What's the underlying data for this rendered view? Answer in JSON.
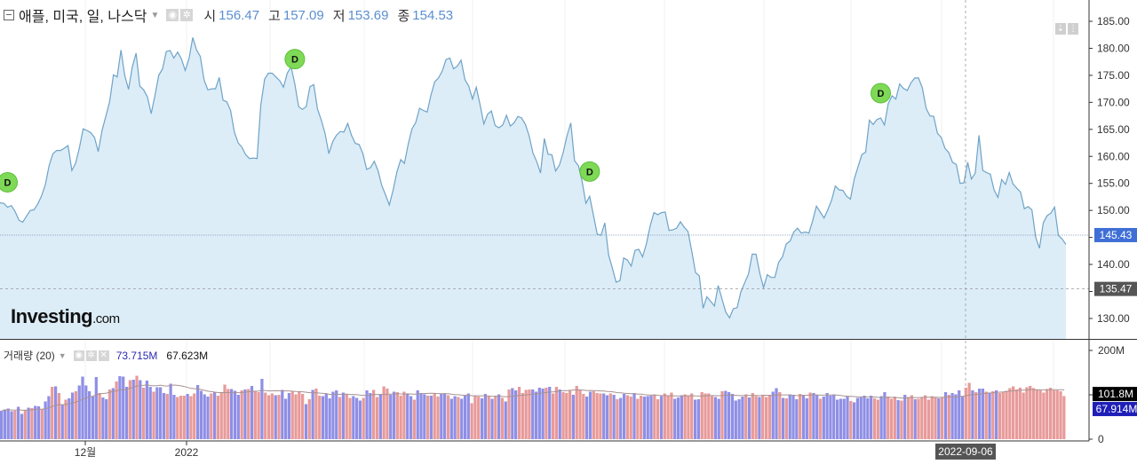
{
  "header": {
    "title": "애플, 미국, 일, 나스닥",
    "open_label": "시",
    "open": "156.47",
    "high_label": "고",
    "high": "157.09",
    "low_label": "저",
    "low": "153.69",
    "close_label": "종",
    "close": "154.53"
  },
  "volume_header": {
    "title": "거래량 (20)",
    "value1": "73.715M",
    "value2": "67.623M"
  },
  "logo": {
    "main": "Investing",
    "suffix": ".com"
  },
  "colors": {
    "line": "#6fa3c7",
    "area": "#dcedf8",
    "vol_up": "#8f8fe6",
    "vol_down": "#e89a9a",
    "marker": "#7ed957",
    "price_badge": "#3f6fd6",
    "ref_badge": "#555555"
  },
  "chart_data": [
    {
      "type": "area",
      "series_label": "price",
      "y_ticks": [
        "185.00",
        "180.00",
        "175.00",
        "170.00",
        "165.00",
        "160.00",
        "155.00",
        "150.00",
        "145.00",
        "140.00",
        "135.00",
        "130.00"
      ],
      "ylim": [
        127,
        187
      ],
      "x_labels": [
        "12월",
        "2022",
        "2022-09-06"
      ],
      "current_price_label": "145.43",
      "current_price": 145.43,
      "ref_price_label": "135.47",
      "ref_price": 135.47,
      "dividend_marker": "D",
      "dividend_markers_idx": [
        2,
        78,
        156,
        233
      ],
      "values": [
        151.4,
        151.3,
        150.6,
        150.9,
        149.8,
        148.2,
        147.8,
        148.9,
        150.0,
        150.1,
        151.2,
        152.7,
        154.8,
        158.3,
        160.5,
        161.1,
        161.1,
        161.5,
        162.0,
        157.4,
        158.7,
        161.6,
        165.1,
        164.8,
        164.4,
        163.5,
        160.9,
        164.8,
        167.4,
        170.1,
        175.1,
        174.7,
        179.7,
        175.0,
        172.4,
        176.5,
        179.1,
        173.0,
        172.3,
        171.0,
        167.9,
        171.3,
        175.0,
        176.2,
        179.4,
        179.6,
        178.2,
        179.3,
        178.0,
        175.9,
        178.1,
        182.0,
        179.7,
        178.5,
        174.1,
        172.3,
        172.5,
        172.5,
        174.6,
        170.4,
        170.1,
        168.5,
        164.5,
        162.5,
        161.7,
        160.3,
        159.6,
        159.7,
        159.6,
        169.5,
        174.3,
        175.4,
        175.4,
        174.7,
        174.0,
        172.8,
        175.4,
        176.6,
        173.4,
        169.2,
        168.7,
        169.2,
        172.9,
        173.3,
        168.8,
        166.7,
        164.2,
        160.5,
        162.7,
        163.9,
        164.6,
        164.5,
        166.1,
        163.9,
        162.4,
        162.2,
        160.5,
        157.6,
        157.9,
        159.1,
        157.4,
        154.6,
        152.9,
        151.0,
        153.8,
        157.1,
        159.4,
        158.7,
        162.3,
        165.1,
        166.3,
        168.9,
        168.5,
        168.2,
        171.3,
        173.8,
        174.5,
        175.8,
        177.9,
        178.2,
        176.2,
        176.7,
        177.8,
        174.2,
        173.0,
        170.6,
        172.8,
        169.6,
        166.0,
        167.8,
        168.4,
        165.7,
        165.3,
        165.8,
        167.6,
        165.6,
        166.2,
        167.4,
        167.1,
        165.9,
        163.8,
        160.6,
        159.0,
        156.9,
        163.3,
        160.4,
        160.3,
        157.3,
        158.4,
        160.7,
        163.8,
        166.2,
        159.2,
        158.3,
        155.4,
        151.3,
        152.6,
        149.1,
        145.6,
        145.4,
        147.7,
        141.8,
        139.3,
        136.7,
        137.0,
        141.2,
        140.8,
        139.7,
        142.6,
        142.8,
        141.4,
        143.8,
        147.1,
        149.6,
        149.2,
        149.6,
        149.7,
        146.3,
        146.4,
        146.7,
        147.9,
        146.9,
        146.1,
        142.5,
        138.5,
        137.9,
        131.9,
        134.0,
        133.2,
        132.3,
        136.1,
        133.6,
        131.2,
        130.1,
        131.8,
        132.0,
        134.9,
        136.6,
        138.2,
        141.9,
        141.9,
        138.4,
        135.7,
        138.1,
        137.6,
        137.6,
        140.4,
        141.4,
        143.8,
        144.3,
        146.0,
        146.7,
        145.8,
        146.0,
        145.8,
        148.1,
        150.8,
        149.7,
        148.6,
        150.1,
        151.9,
        154.5,
        153.8,
        153.7,
        152.6,
        152.1,
        155.8,
        158.1,
        160.3,
        160.8,
        166.7,
        165.9,
        166.8,
        167.1,
        165.8,
        169.8,
        171.2,
        170.6,
        173.4,
        172.6,
        172.2,
        173.6,
        174.5,
        174.5,
        172.7,
        168.9,
        167.5,
        167.4,
        164.3,
        163.5,
        161.5,
        160.7,
        158.9,
        158.5,
        155.0,
        155.1,
        158.9,
        155.8,
        156.9,
        163.9,
        157.4,
        157.0,
        156.7,
        153.8,
        152.4,
        155.7,
        154.8,
        157.0,
        154.9,
        154.1,
        153.4,
        150.3,
        150.7,
        150.1,
        145.0,
        143.0,
        147.7,
        149.0,
        149.5,
        150.6,
        145.4,
        144.7,
        143.7
      ]
    },
    {
      "type": "bar",
      "series_label": "volume",
      "y_ticks": [
        "200M",
        "100M",
        "0"
      ],
      "ylim": [
        0,
        200
      ],
      "current_volume_label": "101.8M",
      "current_volume": 101.8,
      "avg_volume_label": "67.914M",
      "avg_volume": 67.914,
      "up_flags": "1111011010110110101011011111101101011101010110111011000100111101000011101010010001011100001010011111010011101100100110001101110100110110111000110101010110000111101001000100011000110101100100111001000111000110000110111111010010001101011101101101111111101111110011000101001000000101011110010110101",
      "values": [
        64,
        67,
        69,
        63,
        64,
        73,
        57,
        65,
        71,
        70,
        75,
        74,
        68,
        85,
        97,
        118,
        119,
        104,
        77,
        89,
        92,
        105,
        108,
        121,
        141,
        121,
        108,
        96,
        140,
        104,
        94,
        90,
        112,
        115,
        130,
        142,
        141,
        118,
        133,
        134,
        143,
        133,
        116,
        132,
        118,
        107,
        117,
        117,
        104,
        102,
        125,
        100,
        95,
        98,
        98,
        102,
        97,
        103,
        122,
        109,
        101,
        96,
        103,
        106,
        98,
        106,
        123,
        113,
        113,
        109,
        100,
        110,
        112,
        113,
        120,
        109,
        106,
        136,
        105,
        99,
        103,
        99,
        100,
        111,
        91,
        104,
        108,
        101,
        108,
        102,
        79,
        90,
        111,
        114,
        98,
        97,
        102,
        92,
        107,
        110,
        95,
        105,
        102,
        93,
        97,
        93,
        87,
        93,
        110,
        104,
        111,
        95,
        102,
        119,
        114,
        100,
        107,
        106,
        98,
        107,
        101,
        97,
        89,
        110,
        104,
        101,
        98,
        98,
        104,
        96,
        102,
        102,
        99,
        91,
        97,
        95,
        91,
        98,
        103,
        81,
        99,
        96,
        92,
        102,
        97,
        91,
        98,
        101,
        93,
        85,
        112,
        115,
        110,
        118,
        104,
        111,
        112,
        112,
        107,
        116,
        114,
        116,
        118,
        103,
        118,
        112,
        106,
        104,
        109,
        100,
        120,
        111,
        102,
        96,
        107,
        108,
        104,
        103,
        103,
        99,
        103,
        100,
        90,
        93,
        102,
        99,
        96,
        104,
        91,
        98,
        96,
        97,
        98,
        101,
        90,
        97,
        103,
        99,
        105,
        91,
        94,
        99,
        101,
        98,
        103,
        89,
        90,
        106,
        103,
        103,
        97,
        95,
        91,
        108,
        109,
        106,
        102,
        87,
        90,
        96,
        101,
        94,
        104,
        97,
        95,
        100,
        95,
        100,
        107,
        115,
        106,
        93,
        92,
        101,
        100,
        90,
        102,
        100,
        92,
        105,
        104,
        99,
        91,
        96,
        104,
        98,
        101,
        89,
        91,
        91,
        96,
        86,
        83,
        93,
        94,
        98,
        92,
        98,
        92,
        89,
        97,
        106,
        96,
        91,
        96,
        88,
        87,
        100,
        95,
        99,
        90,
        91,
        94,
        99,
        89,
        97,
        95,
        92,
        94,
        106,
        100,
        104,
        101,
        110,
        97,
        116,
        127,
        110,
        106,
        114,
        114,
        107,
        105,
        108,
        110,
        104,
        107,
        109,
        115,
        119,
        112,
        116,
        105,
        117,
        120,
        115,
        111,
        110,
        105,
        113,
        116,
        110,
        110,
        108,
        97
      ]
    }
  ]
}
